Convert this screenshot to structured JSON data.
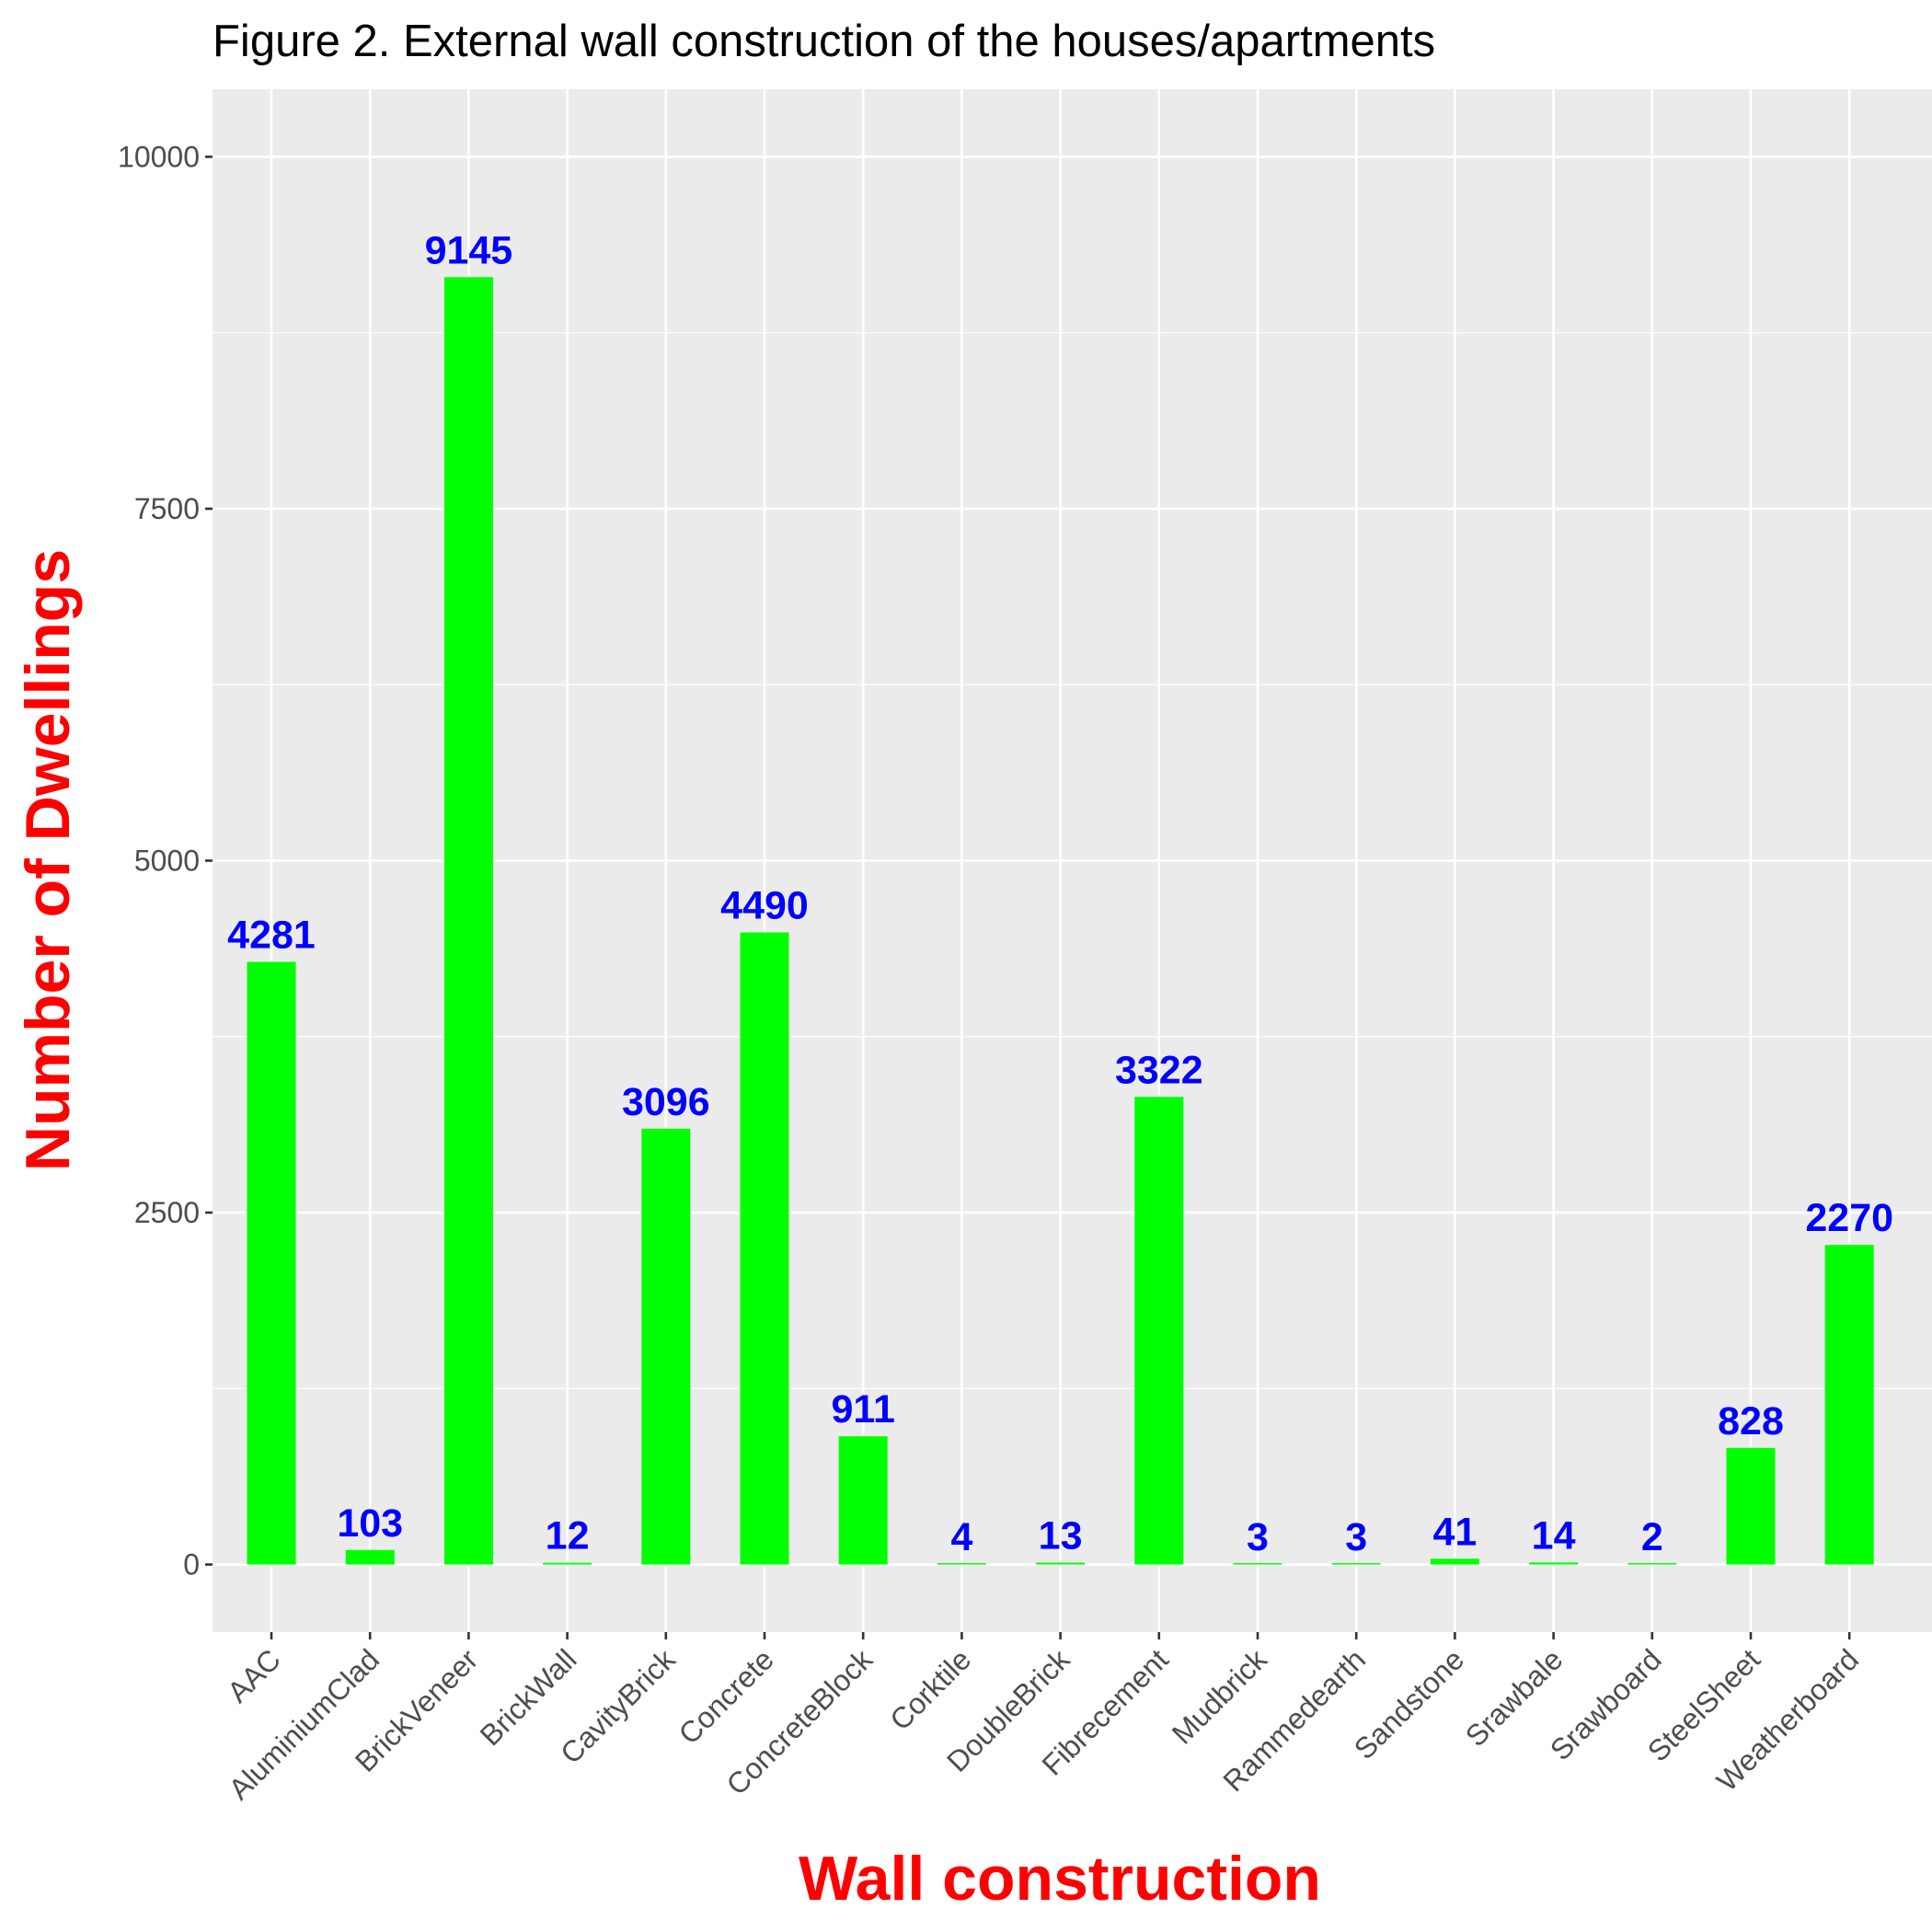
{
  "chart_data": {
    "type": "bar",
    "title": "Figure 2. External wall construction of the houses/apartments",
    "xlabel": "Wall construction",
    "ylabel": "Number of Dwellings",
    "categories": [
      "AAC",
      "AluminiumClad",
      "BrickVeneer",
      "BrickWall",
      "CavityBrick",
      "Concrete",
      "ConcreteBlock",
      "Corktile",
      "DoubleBrick",
      "Fibrecement",
      "Mudbrick",
      "Rammedearth",
      "Sandstone",
      "Srawbale",
      "Srawboard",
      "SteelSheet",
      "Weatherboard"
    ],
    "values": [
      4281,
      103,
      9145,
      12,
      3096,
      4490,
      911,
      4,
      13,
      3322,
      3,
      3,
      41,
      14,
      2,
      828,
      2270
    ],
    "value_labels": [
      "4281",
      "103",
      "9145",
      "12",
      "3096",
      "4490",
      "911",
      "4",
      "13",
      "3322",
      "3",
      "3",
      "41",
      "14",
      "2",
      "828",
      "2270"
    ],
    "ylim": [
      -480,
      10480
    ],
    "yticks": [
      0,
      2500,
      5000,
      7500,
      10000
    ],
    "ytick_labels": [
      "0",
      "2500",
      "5000",
      "7500",
      "10000"
    ],
    "grid": true,
    "legend": "none",
    "colors": {
      "bar": "#00ff00",
      "data_label": "#0000ff",
      "axis_title": "#ff0000",
      "panel_background": "#ebebeb",
      "grid": "#ffffff",
      "tick_text": "#4d4d4d",
      "title": "#000000"
    }
  }
}
